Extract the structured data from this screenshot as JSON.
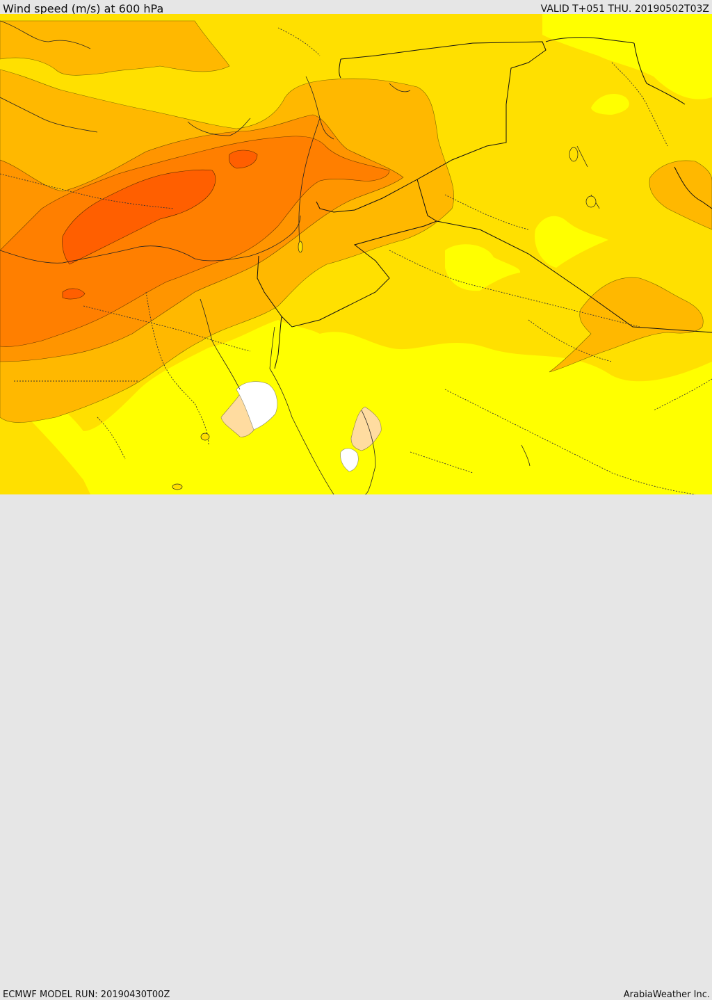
{
  "header": {
    "title": "Wind speed (m/s) at 600 hPa",
    "valid": "VALID T+051 THU. 20190502T03Z"
  },
  "footer": {
    "model_run": "ECMWF MODEL RUN: 20190430T00Z",
    "credit": "ArabiaWeather Inc."
  },
  "colors": {
    "band_5_10": "#ffff00",
    "band_10_15": "#ffe000",
    "band_15_20": "#ffb800",
    "band_20_25": "#ff9500",
    "band_25_30": "#ff7f00",
    "band_30_35": "#ff5f00",
    "band_calm": "#ffdca0",
    "band_very_calm": "#ffffff"
  }
}
